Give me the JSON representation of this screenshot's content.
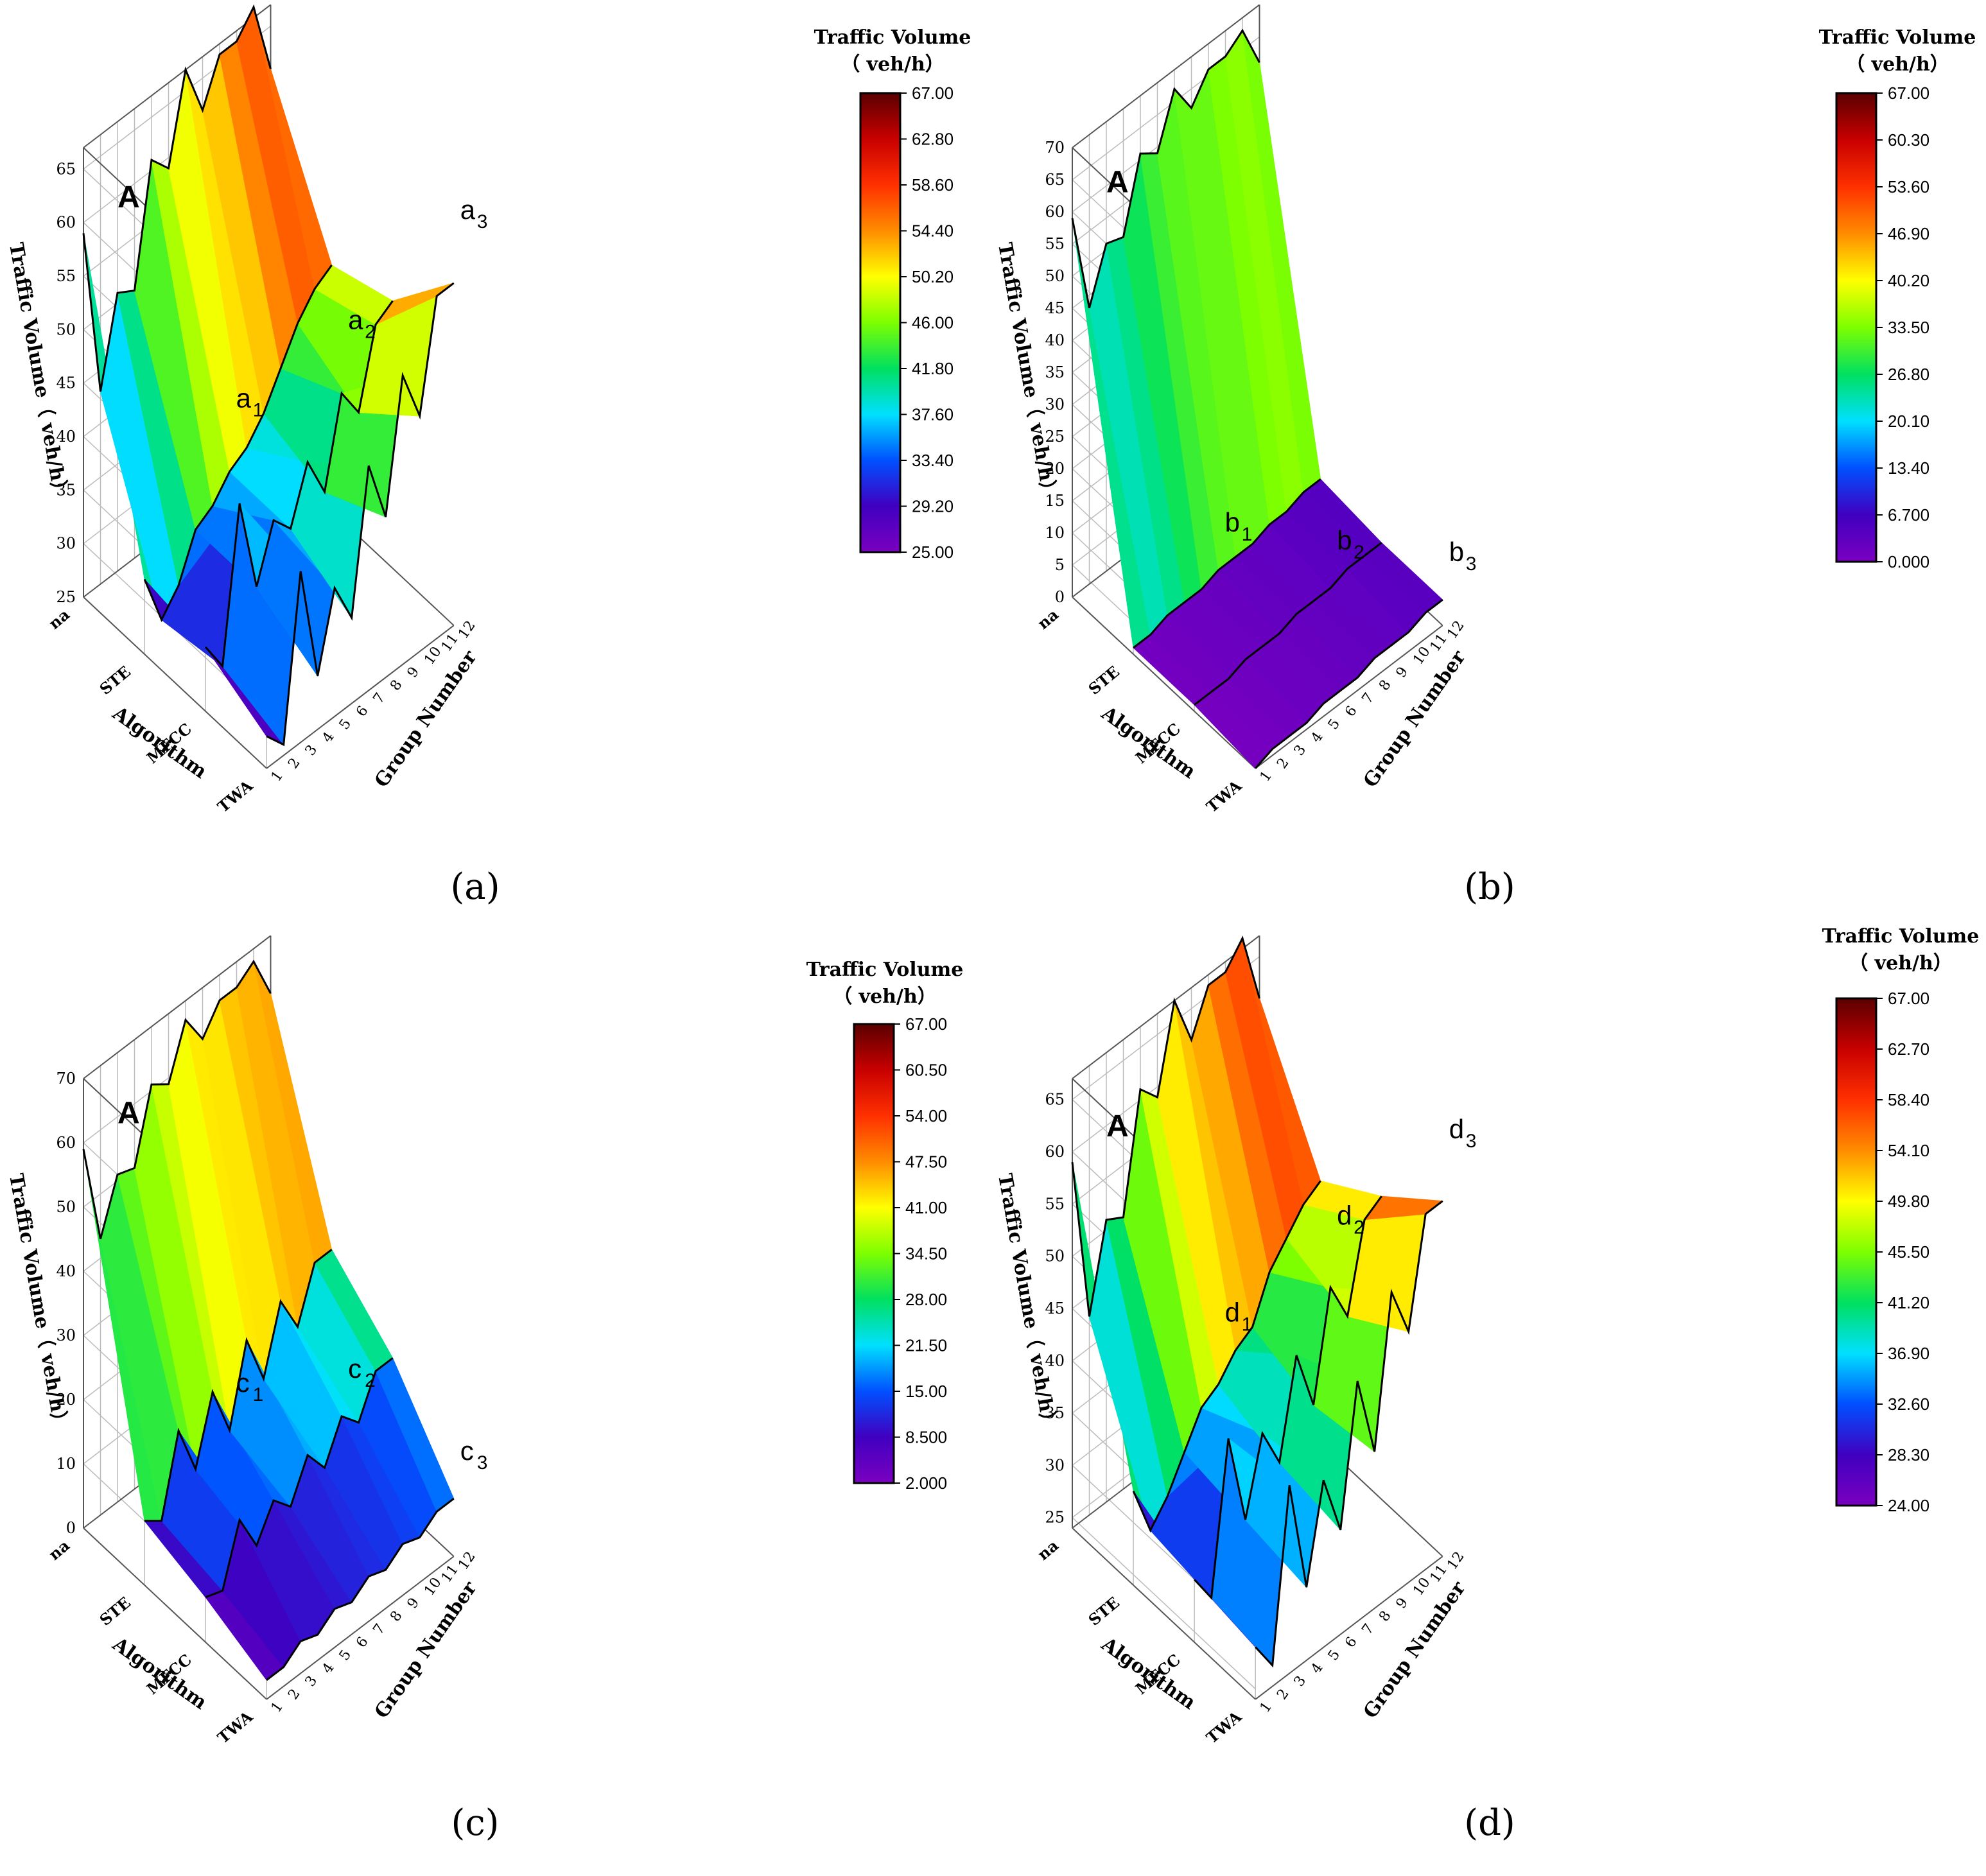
{
  "figure": {
    "description_free": true
  },
  "colors": {
    "stops": [
      "#5a0000",
      "#c80000",
      "#ff3000",
      "#ff8c00",
      "#ffff00",
      "#7dff00",
      "#00e060",
      "#00e0ff",
      "#0050ff",
      "#4000c0",
      "#7b00c0",
      "#000000"
    ]
  },
  "chart_data": [
    {
      "type": "surface3d",
      "panel_label": "(a)",
      "zlabel": "Traffic Volume（ veh/h）",
      "xlabel": "Algorithm",
      "ylabel": "Group Number",
      "algorithm_ticks": [
        "na",
        "STE",
        "MFCC",
        "TWA"
      ],
      "group_ticks": [
        "1",
        "2",
        "3",
        "4",
        "5",
        "6",
        "7",
        "8",
        "9",
        "10",
        "11",
        "12"
      ],
      "z_ticks": [
        "25",
        "30",
        "35",
        "40",
        "45",
        "50",
        "55",
        "60",
        "65"
      ],
      "zlim": [
        25,
        67
      ],
      "series_labels": [
        "A",
        "a",
        "a",
        "a"
      ],
      "series_subscripts": [
        "1",
        "2",
        "3"
      ],
      "series": [
        {
          "name": "A",
          "values": [
            59,
            43,
            51,
            50,
            61,
            59,
            67,
            62,
            66,
            66,
            68,
            61
          ]
        },
        {
          "name": "a1",
          "values": [
            32,
            27,
            29,
            33,
            34,
            36,
            37,
            39,
            42,
            45,
            47,
            48
          ]
        },
        {
          "name": "a2",
          "values": [
            31,
            28,
            42,
            33,
            38,
            36,
            41,
            37,
            45,
            42,
            49,
            50
          ]
        },
        {
          "name": "a3",
          "values": [
            28,
            26,
            41,
            30,
            37,
            33,
            46,
            40,
            52,
            47,
            57,
            57
          ]
        }
      ],
      "colorbar": {
        "title": "Traffic Volume",
        "unit": "（ veh/h）",
        "ticks": [
          "67.00",
          "62.80",
          "58.60",
          "54.40",
          "50.20",
          "46.00",
          "41.80",
          "37.60",
          "33.40",
          "29.20",
          "25.00"
        ]
      }
    },
    {
      "type": "surface3d",
      "panel_label": "(b)",
      "zlabel": "Traffic Volume（ veh/h）",
      "xlabel": "Algorithm",
      "ylabel": "Group Number",
      "algorithm_ticks": [
        "na",
        "STE",
        "MFCC",
        "TWA"
      ],
      "group_ticks": [
        "1",
        "2",
        "3",
        "4",
        "5",
        "6",
        "7",
        "8",
        "9",
        "10",
        "11",
        "12"
      ],
      "z_ticks": [
        "0",
        "5",
        "10",
        "15",
        "20",
        "25",
        "30",
        "35",
        "40",
        "45",
        "50",
        "55",
        "60",
        "65",
        "70"
      ],
      "zlim": [
        0,
        70
      ],
      "series_labels": [
        "A",
        "b",
        "b",
        "b"
      ],
      "series_subscripts": [
        "1",
        "2",
        "3"
      ],
      "series": [
        {
          "name": "A",
          "values": [
            59,
            43,
            51,
            50,
            61,
            59,
            67,
            62,
            66,
            66,
            68,
            61
          ]
        },
        {
          "name": "b1",
          "values": [
            1,
            1,
            2,
            2,
            2,
            3,
            3,
            3,
            4,
            4,
            5,
            5
          ]
        },
        {
          "name": "b2",
          "values": [
            1,
            1,
            1,
            2,
            2,
            2,
            3,
            3,
            3,
            4,
            4,
            4
          ]
        },
        {
          "name": "b3",
          "values": [
            0,
            1,
            1,
            1,
            2,
            2,
            2,
            3,
            3,
            3,
            4,
            4
          ]
        }
      ],
      "colorbar": {
        "title": "Traffic Volume",
        "unit": "（ veh/h）",
        "ticks": [
          "67.00",
          "60.30",
          "53.60",
          "46.90",
          "40.20",
          "33.50",
          "26.80",
          "20.10",
          "13.40",
          "6.700",
          "0.000"
        ]
      }
    },
    {
      "type": "surface3d",
      "panel_label": "(c)",
      "zlabel": "Traffic Volume（ veh/h）",
      "xlabel": "Algorithm",
      "ylabel": "Group Number",
      "algorithm_ticks": [
        "na",
        "STE",
        "MFCC",
        "TWA"
      ],
      "group_ticks": [
        "1",
        "2",
        "3",
        "4",
        "5",
        "6",
        "7",
        "8",
        "9",
        "10",
        "11",
        "12"
      ],
      "z_ticks": [
        "0",
        "10",
        "20",
        "30",
        "40",
        "50",
        "60",
        "70"
      ],
      "zlim": [
        0,
        70
      ],
      "series_labels": [
        "A",
        "c",
        "c",
        "c"
      ],
      "series_subscripts": [
        "1",
        "2",
        "3"
      ],
      "series": [
        {
          "name": "A",
          "values": [
            59,
            43,
            51,
            50,
            61,
            59,
            67,
            62,
            66,
            66,
            68,
            61
          ]
        },
        {
          "name": "c1",
          "values": [
            10,
            8,
            20,
            12,
            22,
            14,
            26,
            18,
            28,
            22,
            30,
            30
          ]
        },
        {
          "name": "c2",
          "values": [
            7,
            6,
            15,
            9,
            14,
            11,
            17,
            13,
            19,
            16,
            22,
            22
          ]
        },
        {
          "name": "c3",
          "values": [
            3,
            3,
            5,
            4,
            6,
            5,
            7,
            6,
            8,
            7,
            9,
            9
          ]
        }
      ],
      "colorbar": {
        "title": "Traffic Volume",
        "unit": "（ veh/h）",
        "ticks": [
          "67.00",
          "60.50",
          "54.00",
          "47.50",
          "41.00",
          "34.50",
          "28.00",
          "21.50",
          "15.00",
          "8.500",
          "2.000"
        ]
      }
    },
    {
      "type": "surface3d",
      "panel_label": "(d)",
      "zlabel": "Traffic Volume（ veh/h）",
      "xlabel": "Algorithm",
      "ylabel": "Group Number",
      "algorithm_ticks": [
        "na",
        "STE",
        "MFCC",
        "TWA"
      ],
      "group_ticks": [
        "1",
        "2",
        "3",
        "4",
        "5",
        "6",
        "7",
        "8",
        "9",
        "10",
        "11",
        "12"
      ],
      "z_ticks": [
        "25",
        "30",
        "35",
        "40",
        "45",
        "50",
        "55",
        "60",
        "65"
      ],
      "zlim": [
        24,
        67
      ],
      "series_labels": [
        "A",
        "d",
        "d",
        "d"
      ],
      "series_subscripts": [
        "1",
        "2",
        "3"
      ],
      "series": [
        {
          "name": "A",
          "values": [
            59,
            43,
            51,
            50,
            61,
            59,
            67,
            62,
            66,
            66,
            68,
            61
          ]
        },
        {
          "name": "d1",
          "values": [
            33,
            28,
            30,
            33,
            36,
            37,
            39,
            40,
            44,
            46,
            48,
            49
          ]
        },
        {
          "name": "d2",
          "values": [
            30,
            27,
            41,
            32,
            39,
            35,
            44,
            38,
            48,
            44,
            52,
            53
          ]
        },
        {
          "name": "d3",
          "values": [
            29,
            26,
            42,
            31,
            40,
            34,
            47,
            39,
            53,
            48,
            58,
            58
          ]
        }
      ],
      "colorbar": {
        "title": "Traffic Volume",
        "unit": "（ veh/h）",
        "ticks": [
          "67.00",
          "62.70",
          "58.40",
          "54.10",
          "49.80",
          "45.50",
          "41.20",
          "36.90",
          "32.60",
          "28.30",
          "24.00"
        ]
      }
    }
  ]
}
